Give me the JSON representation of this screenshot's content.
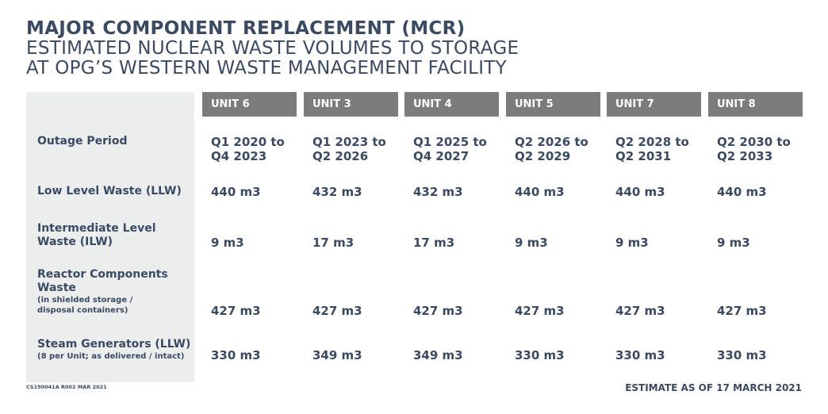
{
  "title": {
    "line1": "MAJOR COMPONENT REPLACEMENT (MCR)",
    "line2": "ESTIMATED NUCLEAR WASTE VOLUMES TO STORAGE",
    "line3": "AT OPG’S WESTERN WASTE MANAGEMENT FACILITY"
  },
  "units": [
    "UNIT 6",
    "UNIT 3",
    "UNIT 4",
    "UNIT 5",
    "UNIT 7",
    "UNIT 8"
  ],
  "rows": {
    "outage": {
      "label": "Outage Period",
      "values": [
        [
          "Q1 2020 to",
          "Q4 2023"
        ],
        [
          "Q1 2023 to",
          "Q2 2026"
        ],
        [
          "Q1 2025 to",
          "Q4 2027"
        ],
        [
          "Q2 2026 to",
          "Q2 2029"
        ],
        [
          "Q2 2028 to",
          "Q2 2031"
        ],
        [
          "Q2 2030 to",
          "Q2 2033"
        ]
      ]
    },
    "llw": {
      "label": "Low Level Waste (LLW)",
      "values": [
        "440 m3",
        "432 m3",
        "432 m3",
        "440 m3",
        "440 m3",
        "440 m3"
      ]
    },
    "ilw": {
      "label_line1": "Intermediate Level",
      "label_line2": "Waste (ILW)",
      "values": [
        "9 m3",
        "17 m3",
        "17 m3",
        "9 m3",
        "9 m3",
        "9 m3"
      ]
    },
    "reactor": {
      "label_line1": "Reactor Components",
      "label_line2": "Waste",
      "note_line1": "(in shielded storage /",
      "note_line2": "disposal containers)",
      "values": [
        "427 m3",
        "427 m3",
        "427 m3",
        "427 m3",
        "427 m3",
        "427 m3"
      ]
    },
    "steam": {
      "label": "Steam Generators (LLW)",
      "note": "(8 per Unit; as delivered / intact)",
      "values": [
        "330 m3",
        "349 m3",
        "349 m3",
        "330 m3",
        "330 m3",
        "330 m3"
      ]
    }
  },
  "footer": {
    "code": "CS190041A R002 MAR 2021",
    "estimate": "ESTIMATE AS OF 17 MARCH 2021"
  }
}
